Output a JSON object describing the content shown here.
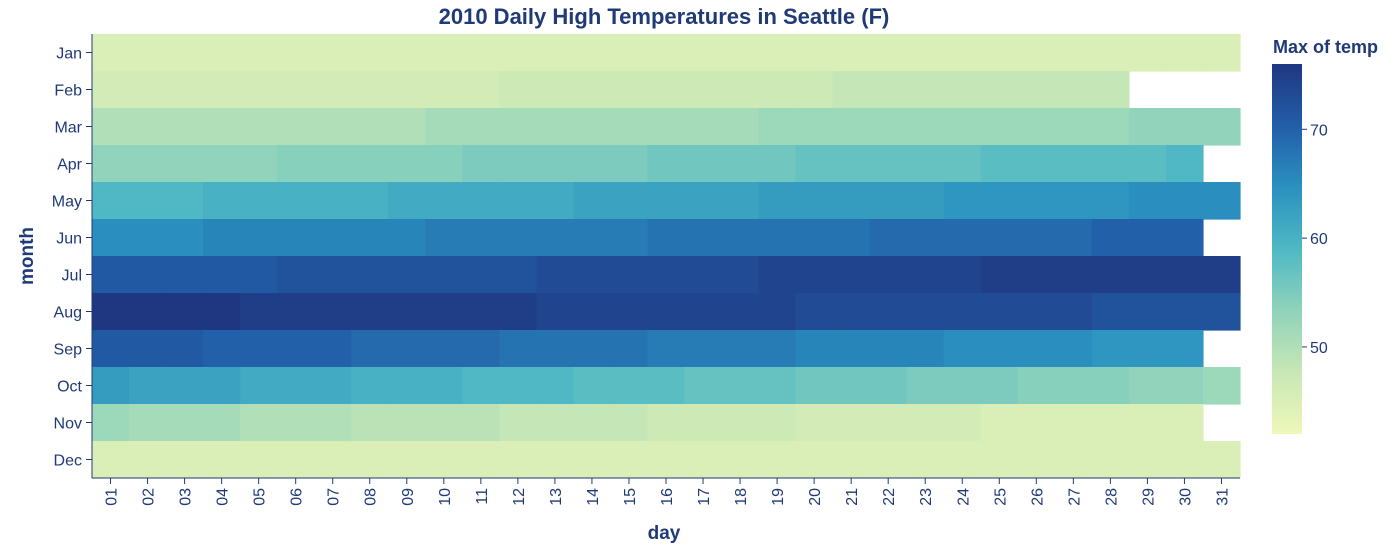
{
  "chart_data": {
    "type": "heatmap",
    "title": "2010 Daily High Temperatures in Seattle (F)",
    "xlabel": "day",
    "ylabel": "month",
    "x_categories": [
      "01",
      "02",
      "03",
      "04",
      "05",
      "06",
      "07",
      "08",
      "09",
      "10",
      "11",
      "12",
      "13",
      "14",
      "15",
      "16",
      "17",
      "18",
      "19",
      "20",
      "21",
      "22",
      "23",
      "24",
      "25",
      "26",
      "27",
      "28",
      "29",
      "30",
      "31"
    ],
    "y_categories": [
      "Jan",
      "Feb",
      "Mar",
      "Apr",
      "May",
      "Jun",
      "Jul",
      "Aug",
      "Sep",
      "Oct",
      "Nov",
      "Dec"
    ],
    "legend": {
      "title": "Max of temp",
      "ticks": [
        50,
        60,
        70
      ],
      "domain": [
        42,
        76
      ],
      "placement": "right"
    },
    "color_scale": [
      "#eef8b9",
      "#c8e7b6",
      "#8fd3bb",
      "#4fb8c4",
      "#2a91bf",
      "#225ea8",
      "#1f3780"
    ],
    "values": [
      [
        45,
        45,
        45,
        45,
        45,
        45,
        45,
        45,
        45,
        45,
        45,
        45,
        45,
        45,
        45,
        45,
        45,
        45,
        45,
        45,
        45,
        45,
        45,
        45,
        45,
        45,
        45,
        45,
        45,
        45,
        45
      ],
      [
        46,
        46,
        46,
        46,
        46,
        46,
        46,
        46,
        46,
        46,
        46,
        47,
        47,
        47,
        47,
        47,
        47,
        47,
        47,
        47,
        48,
        48,
        48,
        48,
        48,
        48,
        48,
        48,
        null,
        null,
        null
      ],
      [
        50,
        50,
        50,
        50,
        50,
        50,
        50,
        50,
        50,
        51,
        51,
        51,
        51,
        51,
        51,
        51,
        51,
        51,
        52,
        52,
        52,
        52,
        52,
        52,
        52,
        52,
        52,
        52,
        53,
        53,
        53
      ],
      [
        53,
        53,
        53,
        53,
        53,
        54,
        54,
        54,
        54,
        54,
        55,
        55,
        55,
        55,
        55,
        56,
        56,
        56,
        56,
        57,
        57,
        57,
        57,
        57,
        58,
        58,
        58,
        58,
        58,
        59,
        null
      ],
      [
        59,
        59,
        59,
        60,
        60,
        60,
        60,
        60,
        61,
        61,
        61,
        61,
        61,
        62,
        62,
        62,
        62,
        62,
        63,
        63,
        63,
        63,
        63,
        64,
        64,
        64,
        64,
        64,
        65,
        65,
        65
      ],
      [
        65,
        65,
        65,
        66,
        66,
        66,
        66,
        66,
        66,
        67,
        67,
        67,
        67,
        67,
        67,
        68,
        68,
        68,
        68,
        68,
        68,
        69,
        69,
        69,
        69,
        69,
        69,
        70,
        70,
        70,
        null
      ],
      [
        71,
        71,
        71,
        71,
        71,
        72,
        72,
        72,
        72,
        72,
        72,
        72,
        73,
        73,
        73,
        73,
        73,
        73,
        74,
        74,
        74,
        74,
        74,
        74,
        75,
        75,
        75,
        75,
        75,
        75,
        75
      ],
      [
        76,
        76,
        76,
        76,
        75,
        75,
        75,
        75,
        75,
        75,
        75,
        75,
        74,
        74,
        74,
        74,
        74,
        74,
        74,
        73,
        73,
        73,
        73,
        73,
        73,
        73,
        73,
        72,
        72,
        72,
        72
      ],
      [
        71,
        71,
        71,
        70,
        70,
        70,
        70,
        69,
        69,
        69,
        69,
        68,
        68,
        68,
        68,
        67,
        67,
        67,
        67,
        66,
        66,
        66,
        66,
        65,
        65,
        65,
        65,
        64,
        64,
        64,
        null
      ],
      [
        63,
        62,
        62,
        62,
        61,
        61,
        61,
        60,
        60,
        60,
        59,
        59,
        59,
        58,
        58,
        58,
        57,
        57,
        57,
        56,
        56,
        56,
        55,
        55,
        55,
        54,
        54,
        54,
        53,
        53,
        52
      ],
      [
        52,
        51,
        51,
        51,
        50,
        50,
        50,
        49,
        49,
        49,
        49,
        48,
        48,
        48,
        48,
        47,
        47,
        47,
        47,
        46,
        46,
        46,
        46,
        46,
        45,
        45,
        45,
        45,
        45,
        45,
        null
      ],
      [
        45,
        45,
        45,
        45,
        45,
        45,
        45,
        45,
        45,
        45,
        45,
        45,
        45,
        45,
        45,
        45,
        45,
        45,
        45,
        45,
        45,
        45,
        45,
        45,
        45,
        45,
        45,
        45,
        45,
        45,
        45
      ]
    ]
  }
}
